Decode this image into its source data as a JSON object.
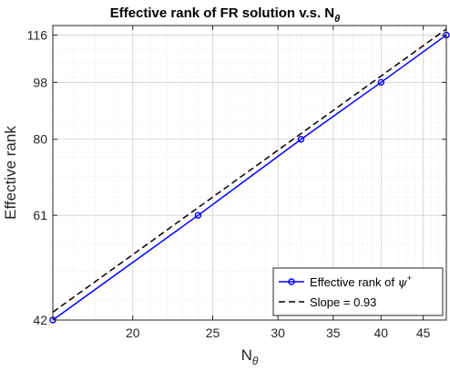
{
  "chart_data": {
    "type": "line",
    "title": "Effective rank of FR solution v.s. N",
    "title_subscript": "θ",
    "xlabel": "N",
    "xlabel_subscript": "θ",
    "ylabel": "Effective rank",
    "x_scale": "log",
    "y_scale": "log",
    "xlim": [
      16,
      48
    ],
    "ylim": [
      42,
      120
    ],
    "x_ticks": [
      20,
      25,
      30,
      35,
      40,
      45
    ],
    "y_ticks": [
      42,
      61,
      80,
      98,
      116
    ],
    "grid": true,
    "legend_position": "bottom-right",
    "series": [
      {
        "name": "Effective rank of ψ⁺",
        "name_text": "Effective rank of ",
        "name_symbol": "ψ",
        "name_superscript": "+",
        "style": "solid",
        "marker": "circle",
        "color": "#0000ff",
        "x": [
          16,
          24,
          32,
          40,
          48
        ],
        "y": [
          42,
          61,
          80,
          98,
          116
        ]
      },
      {
        "name": "Slope = 0.93",
        "style": "dashed",
        "color": "#000000",
        "x": [
          16,
          48
        ],
        "y": [
          43.2,
          118.5
        ]
      }
    ]
  }
}
